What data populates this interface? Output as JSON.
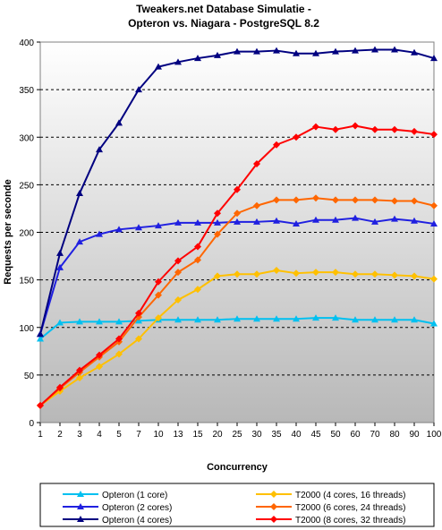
{
  "chart_data": {
    "type": "line",
    "title": "Tweakers.net Database Simulatie -",
    "subtitle": "Opteron vs. Niagara - PostgreSQL 8.2",
    "xlabel": "Concurrency",
    "ylabel": "Requests per seconde",
    "ylim": [
      0,
      400
    ],
    "yticks": [
      0,
      50,
      100,
      150,
      200,
      250,
      300,
      350,
      400
    ],
    "grid": "horizontal dashed",
    "legend_position": "bottom",
    "categories": [
      "1",
      "2",
      "3",
      "4",
      "5",
      "7",
      "10",
      "13",
      "15",
      "20",
      "25",
      "30",
      "35",
      "40",
      "45",
      "50",
      "60",
      "70",
      "80",
      "90",
      "100"
    ],
    "series": [
      {
        "name": "Opteron (1 core)",
        "color": "#00c0f0",
        "marker": "triangle",
        "values": [
          88,
          105,
          106,
          106,
          106,
          107,
          108,
          108,
          108,
          108,
          109,
          109,
          109,
          109,
          110,
          110,
          108,
          108,
          108,
          108,
          104
        ]
      },
      {
        "name": "Opteron (2 cores)",
        "color": "#2020e0",
        "marker": "triangle",
        "values": [
          93,
          163,
          190,
          198,
          203,
          205,
          207,
          210,
          210,
          210,
          211,
          211,
          212,
          209,
          213,
          213,
          215,
          211,
          214,
          212,
          209
        ]
      },
      {
        "name": "Opteron (4 cores)",
        "color": "#000080",
        "marker": "triangle",
        "values": [
          93,
          178,
          241,
          287,
          315,
          350,
          374,
          379,
          383,
          386,
          390,
          390,
          391,
          388,
          388,
          390,
          391,
          392,
          392,
          389,
          383
        ]
      },
      {
        "name": "T2000 (4 cores, 16 threads)",
        "color": "#ffc000",
        "marker": "diamond",
        "values": [
          18,
          33,
          47,
          59,
          72,
          88,
          110,
          129,
          140,
          154,
          156,
          156,
          160,
          157,
          158,
          158,
          156,
          156,
          155,
          154,
          151
        ]
      },
      {
        "name": "T2000 (6 cores, 24 threads)",
        "color": "#ff6600",
        "marker": "diamond",
        "values": [
          18,
          36,
          53,
          69,
          85,
          111,
          134,
          158,
          171,
          198,
          220,
          228,
          234,
          234,
          236,
          234,
          234,
          234,
          233,
          233,
          228
        ]
      },
      {
        "name": "T2000 (8 cores, 32 threads)",
        "color": "#ff0000",
        "marker": "diamond",
        "values": [
          18,
          37,
          55,
          71,
          88,
          115,
          148,
          170,
          185,
          220,
          245,
          272,
          292,
          300,
          311,
          308,
          312,
          308,
          308,
          306,
          303
        ]
      }
    ]
  }
}
